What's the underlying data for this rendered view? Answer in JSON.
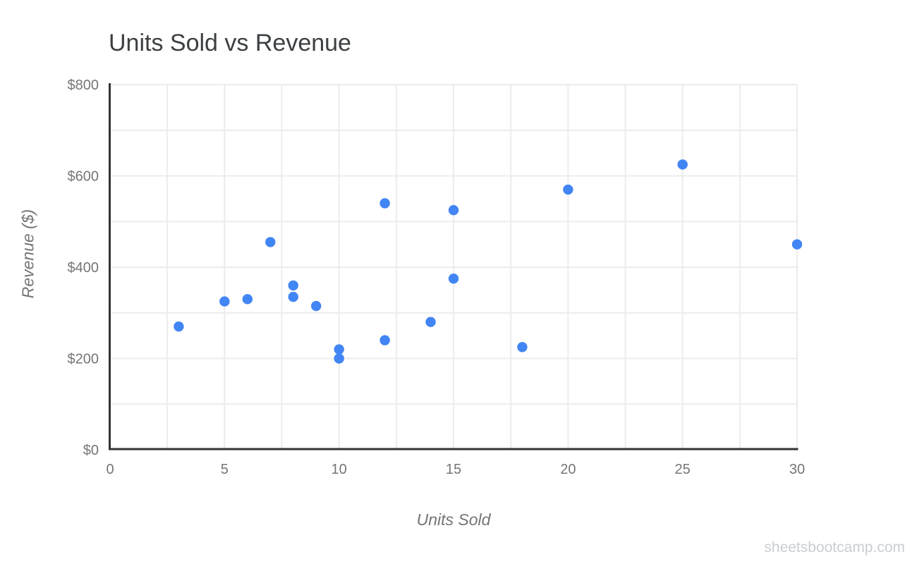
{
  "page": {
    "background": "#ffffff",
    "watermark": "sheetsbootcamp.com"
  },
  "colors": {
    "grid": "#ececec",
    "axis": "#333333",
    "tick_label": "#757575",
    "axis_title": "#757575",
    "title": "#3c4043",
    "watermark": "#c9ced4",
    "point": "#4285F4"
  },
  "chart_data": {
    "type": "scatter",
    "title": "Units Sold vs Revenue",
    "xlabel": "Units Sold",
    "ylabel": "Revenue ($)",
    "xlim": [
      0,
      30
    ],
    "ylim": [
      0,
      800
    ],
    "grid": true,
    "legend": "none",
    "x_major_ticks": [
      0,
      5,
      10,
      15,
      20,
      25,
      30
    ],
    "x_tick_labels": [
      "0",
      "5",
      "10",
      "15",
      "20",
      "25",
      "30"
    ],
    "x_minor_step": 2.5,
    "y_major_ticks": [
      0,
      200,
      400,
      600,
      800
    ],
    "y_tick_labels": [
      "$0",
      "$200",
      "$400",
      "$600",
      "$800"
    ],
    "y_minor_step": 100,
    "point_color": "#4285F4",
    "points": [
      {
        "x": 3,
        "y": 270
      },
      {
        "x": 5,
        "y": 325
      },
      {
        "x": 6,
        "y": 330
      },
      {
        "x": 7,
        "y": 455
      },
      {
        "x": 8,
        "y": 360
      },
      {
        "x": 8,
        "y": 335
      },
      {
        "x": 9,
        "y": 315
      },
      {
        "x": 10,
        "y": 220
      },
      {
        "x": 10,
        "y": 200
      },
      {
        "x": 12,
        "y": 540
      },
      {
        "x": 12,
        "y": 240
      },
      {
        "x": 14,
        "y": 280
      },
      {
        "x": 15,
        "y": 525
      },
      {
        "x": 15,
        "y": 375
      },
      {
        "x": 18,
        "y": 225
      },
      {
        "x": 20,
        "y": 570
      },
      {
        "x": 25,
        "y": 625
      },
      {
        "x": 30,
        "y": 450
      }
    ]
  }
}
